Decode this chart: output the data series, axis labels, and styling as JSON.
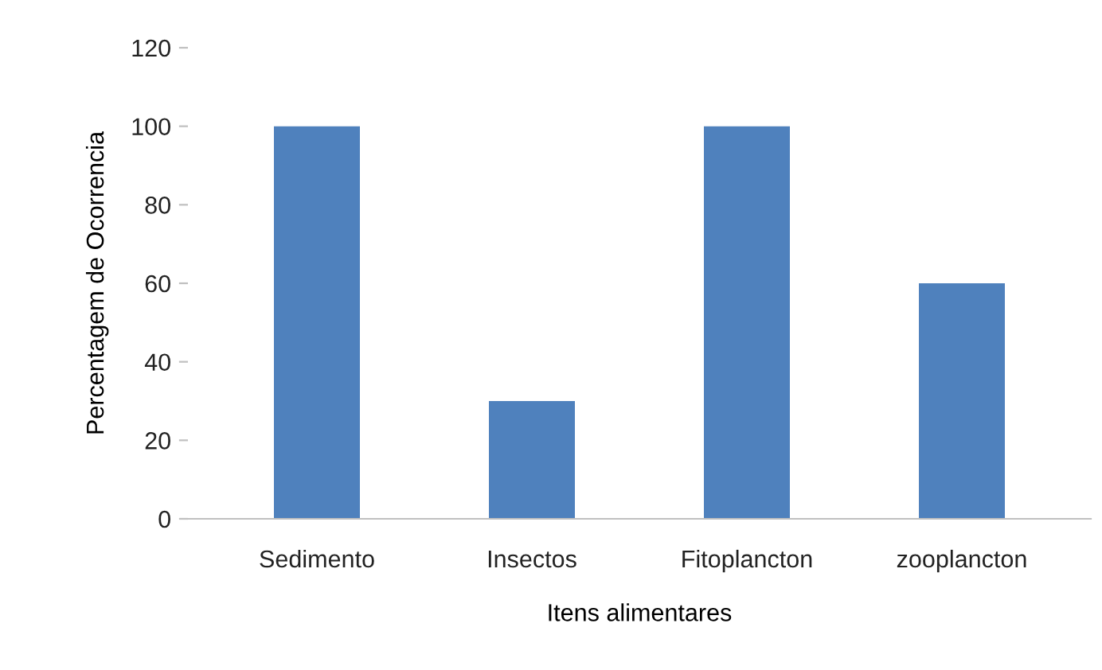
{
  "chart_data": {
    "type": "bar",
    "xlabel": "Itens alimentares",
    "ylabel": "Percentagem de Ocorrencia",
    "categories": [
      "Sedimento",
      "Insectos",
      "Fitoplancton",
      "zooplancton"
    ],
    "values": [
      100,
      30,
      100,
      60
    ],
    "color": "#4f81bd",
    "ylim": [
      0,
      120
    ],
    "yticks": [
      0,
      20,
      40,
      60,
      80,
      100,
      120
    ],
    "grid": false,
    "legend": false
  }
}
